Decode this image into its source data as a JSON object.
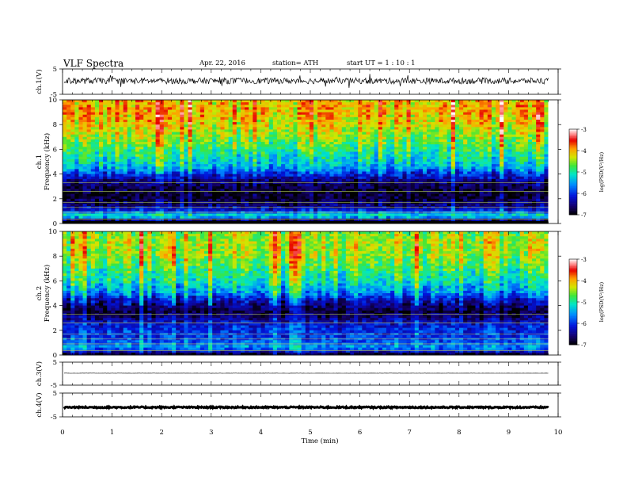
{
  "header": {
    "title": "VLF  Spectra",
    "date": "Apr. 22, 2016",
    "station": "station= ATH",
    "start": "start  UT  =   1  : 10 : 1"
  },
  "chart_data": [
    {
      "type": "line",
      "panel": "ch1-waveform",
      "ylabel": "ch.1(V)",
      "ylim": [
        -5,
        5
      ],
      "yticks": [
        "5",
        "-5"
      ],
      "xlim": [
        0,
        10
      ],
      "signal_end_min": 9.8,
      "baseline_v": 0.3,
      "noise_amplitude_v": 1.2
    },
    {
      "type": "heatmap",
      "panel": "ch1-spectrogram",
      "ylabel": [
        "ch.1",
        "Frequency  (kHz)"
      ],
      "ylim": [
        0,
        10
      ],
      "yticks": [
        "0",
        "2",
        "4",
        "6",
        "8",
        "10"
      ],
      "xlim": [
        0,
        9.8
      ],
      "colorbar": {
        "label": "log(PSD(V²/Hz)",
        "range": [
          -7,
          -3
        ],
        "ticks": [
          "-3",
          "-4",
          "-5",
          "-6",
          "-7"
        ]
      },
      "logpsd_profile_vs_freq_khz": [
        [
          0.2,
          -7
        ],
        [
          0.6,
          -5
        ],
        [
          1.0,
          -6
        ],
        [
          1.5,
          -6.6
        ],
        [
          2.0,
          -6.8
        ],
        [
          2.5,
          -6.9
        ],
        [
          3.0,
          -6.7
        ],
        [
          3.5,
          -6.5
        ],
        [
          4.0,
          -6
        ],
        [
          4.5,
          -5.5
        ],
        [
          5.0,
          -5.2
        ],
        [
          6.0,
          -4.9
        ],
        [
          7.0,
          -4.5
        ],
        [
          8.0,
          -4.2
        ],
        [
          9.0,
          -4.0
        ],
        [
          10.0,
          -4.1
        ]
      ]
    },
    {
      "type": "heatmap",
      "panel": "ch2-spectrogram",
      "ylabel": [
        "ch.2",
        "Frequency  (kHz)"
      ],
      "ylim": [
        0,
        10
      ],
      "yticks": [
        "0",
        "2",
        "4",
        "6",
        "8",
        "10"
      ],
      "xlim": [
        0,
        9.8
      ],
      "colorbar": {
        "label": "log(PSD(V²/Hz)",
        "range": [
          -7,
          -3
        ],
        "ticks": [
          "-3",
          "-4",
          "-5",
          "-6",
          "-7"
        ]
      },
      "logpsd_profile_vs_freq_khz": [
        [
          0.2,
          -6.5
        ],
        [
          0.6,
          -5.5
        ],
        [
          1.0,
          -5.8
        ],
        [
          1.5,
          -6
        ],
        [
          2.0,
          -6
        ],
        [
          2.5,
          -6.2
        ],
        [
          3.0,
          -6.5
        ],
        [
          3.5,
          -6.8
        ],
        [
          4.0,
          -6.5
        ],
        [
          4.5,
          -6.2
        ],
        [
          5.0,
          -5.6
        ],
        [
          6.0,
          -5.1
        ],
        [
          7.0,
          -4.8
        ],
        [
          8.0,
          -4.5
        ],
        [
          9.0,
          -4.4
        ],
        [
          10.0,
          -4.5
        ]
      ]
    },
    {
      "type": "line",
      "panel": "ch3-waveform",
      "ylabel": "ch.3(V)",
      "ylim": [
        -5,
        5
      ],
      "yticks": [
        "5",
        "-5"
      ],
      "xlim": [
        0,
        10
      ],
      "signal_end_min": 9.8,
      "baseline_v": 0.2,
      "noise_amplitude_v": 0.05
    },
    {
      "type": "line",
      "panel": "ch4-waveform",
      "ylabel": "ch.4(V)",
      "ylim": [
        -5,
        5
      ],
      "yticks": [
        "5",
        "-5"
      ],
      "xlim": [
        0,
        10
      ],
      "signal_end_min": 9.8,
      "baseline_v": -1.0,
      "noise_amplitude_v": 0.3
    }
  ],
  "xaxis": {
    "label": "Time  (min)",
    "ticks": [
      "0",
      "1",
      "2",
      "3",
      "4",
      "5",
      "6",
      "7",
      "8",
      "9",
      "10"
    ]
  },
  "colors": {
    "axis": "#000000",
    "background": "#ffffff"
  }
}
